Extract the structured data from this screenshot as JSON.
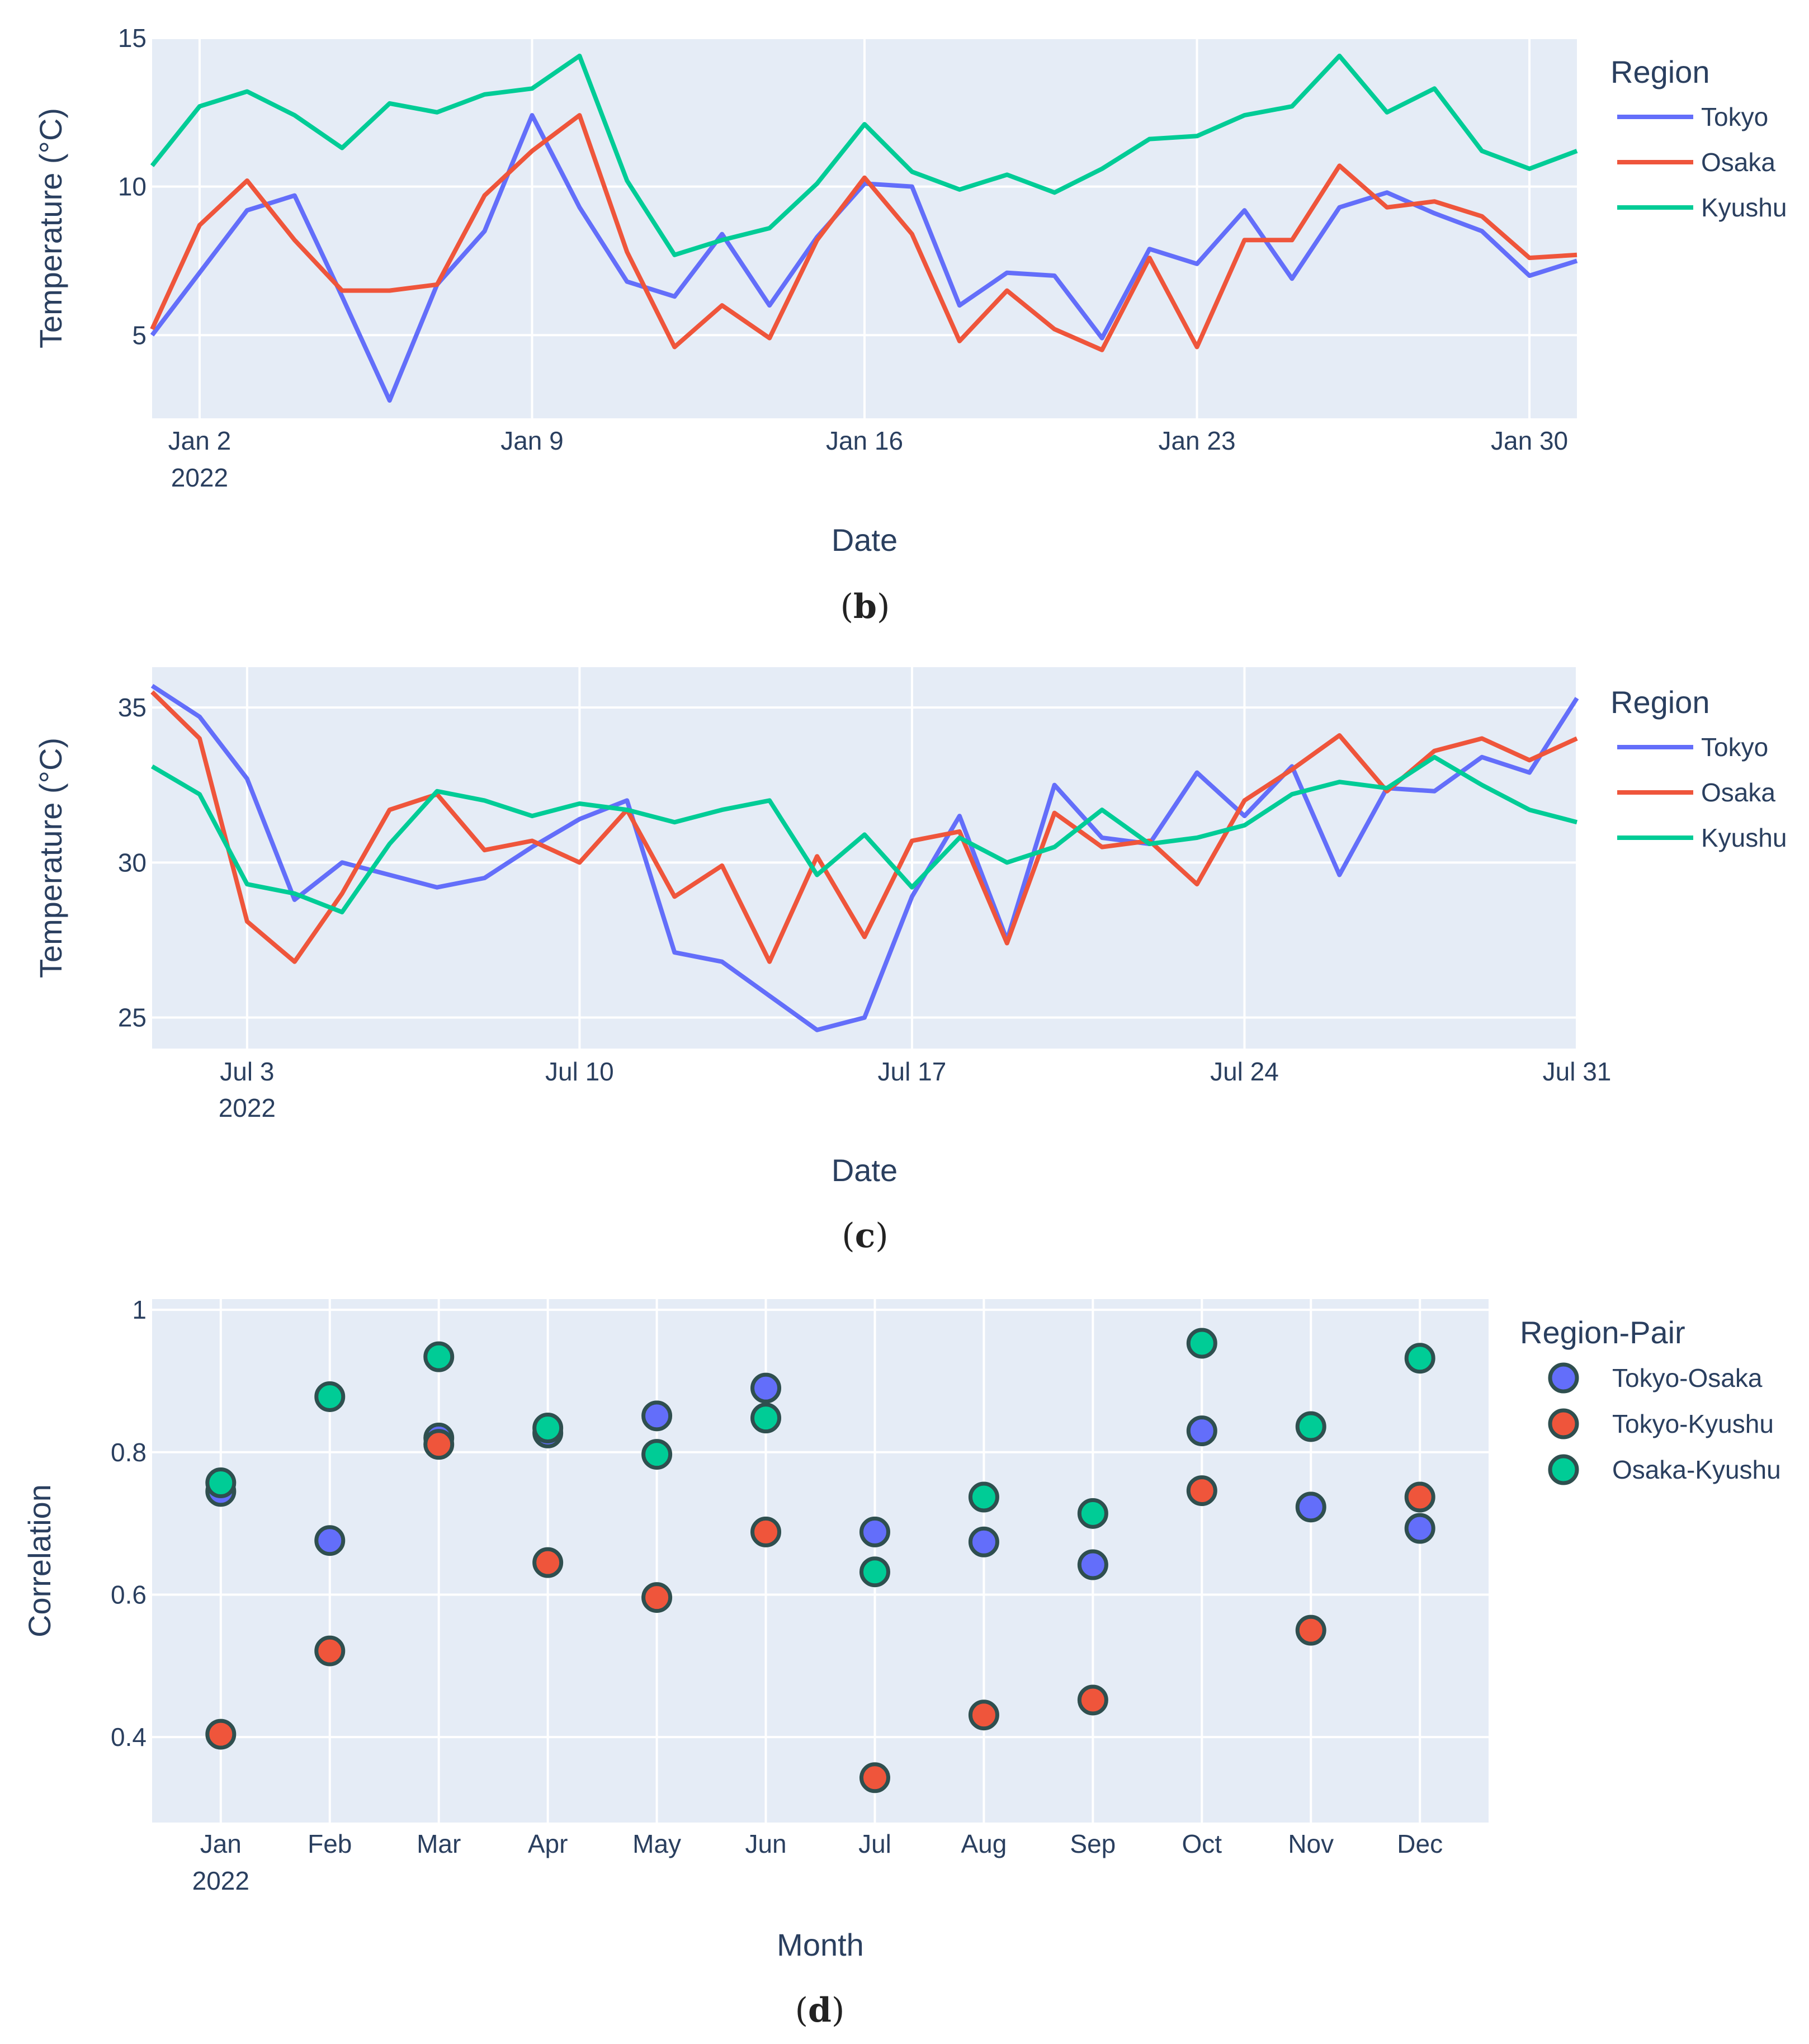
{
  "colors": {
    "plot_bg": "#E5ECF6",
    "grid": "#FFFFFF",
    "text": "#2a3f5f",
    "tokyo": "#636EFA",
    "osaka": "#EF553B",
    "kyushu": "#00CC96",
    "marker_edge": "#2F4F4F"
  },
  "chart_data": [
    {
      "type": "line",
      "panel_label": "b",
      "xlabel": "Date",
      "ylabel": "Temperature (°C)",
      "legend_title": "Region",
      "x": [
        "2022-01-01",
        "2022-01-02",
        "2022-01-03",
        "2022-01-04",
        "2022-01-05",
        "2022-01-06",
        "2022-01-07",
        "2022-01-08",
        "2022-01-09",
        "2022-01-10",
        "2022-01-11",
        "2022-01-12",
        "2022-01-13",
        "2022-01-14",
        "2022-01-15",
        "2022-01-16",
        "2022-01-17",
        "2022-01-18",
        "2022-01-19",
        "2022-01-20",
        "2022-01-21",
        "2022-01-22",
        "2022-01-23",
        "2022-01-24",
        "2022-01-25",
        "2022-01-26",
        "2022-01-27",
        "2022-01-28",
        "2022-01-29",
        "2022-01-30",
        "2022-01-31"
      ],
      "x_range": [
        1,
        31
      ],
      "ylim": [
        2.2,
        15
      ],
      "y_ticks": [
        5,
        10,
        15
      ],
      "x_ticks": [
        {
          "day": 2,
          "label": "Jan 2",
          "sub": "2022"
        },
        {
          "day": 9,
          "label": "Jan 9",
          "sub": ""
        },
        {
          "day": 16,
          "label": "Jan 16",
          "sub": ""
        },
        {
          "day": 23,
          "label": "Jan 23",
          "sub": ""
        },
        {
          "day": 30,
          "label": "Jan 30",
          "sub": ""
        }
      ],
      "series": [
        {
          "name": "Tokyo",
          "color_key": "tokyo",
          "values": [
            5.0,
            7.1,
            9.2,
            9.7,
            6.3,
            2.8,
            6.7,
            8.5,
            12.4,
            9.3,
            6.8,
            6.3,
            8.4,
            6.0,
            8.3,
            10.1,
            10.0,
            6.0,
            7.1,
            7.0,
            4.9,
            7.9,
            7.4,
            9.2,
            6.9,
            9.3,
            9.8,
            9.1,
            8.5,
            7.0,
            7.5
          ]
        },
        {
          "name": "Osaka",
          "color_key": "osaka",
          "values": [
            5.2,
            8.7,
            10.2,
            8.2,
            6.5,
            6.5,
            6.7,
            9.7,
            11.2,
            12.4,
            7.8,
            4.6,
            6.0,
            4.9,
            8.2,
            10.3,
            8.4,
            4.8,
            6.5,
            5.2,
            4.5,
            7.6,
            4.6,
            8.2,
            8.2,
            10.7,
            9.3,
            9.5,
            9.0,
            7.6,
            7.7
          ]
        },
        {
          "name": "Kyushu",
          "color_key": "kyushu",
          "values": [
            10.7,
            12.7,
            13.2,
            12.4,
            11.3,
            12.8,
            12.5,
            13.1,
            13.3,
            14.4,
            10.2,
            7.7,
            8.2,
            8.6,
            10.1,
            12.1,
            10.5,
            9.9,
            10.4,
            9.8,
            10.6,
            11.6,
            11.7,
            12.4,
            12.7,
            14.4,
            12.5,
            13.3,
            11.2,
            10.6,
            11.2
          ]
        }
      ]
    },
    {
      "type": "line",
      "panel_label": "c",
      "xlabel": "Date",
      "ylabel": "Temperature (°C)",
      "legend_title": "Region",
      "x": [
        "2022-07-01",
        "2022-07-02",
        "2022-07-03",
        "2022-07-04",
        "2022-07-05",
        "2022-07-06",
        "2022-07-07",
        "2022-07-08",
        "2022-07-09",
        "2022-07-10",
        "2022-07-11",
        "2022-07-12",
        "2022-07-13",
        "2022-07-14",
        "2022-07-15",
        "2022-07-16",
        "2022-07-17",
        "2022-07-18",
        "2022-07-19",
        "2022-07-20",
        "2022-07-21",
        "2022-07-22",
        "2022-07-23",
        "2022-07-24",
        "2022-07-25",
        "2022-07-26",
        "2022-07-27",
        "2022-07-28",
        "2022-07-29",
        "2022-07-30",
        "2022-07-31"
      ],
      "x_range": [
        1,
        31
      ],
      "ylim": [
        24,
        36.3
      ],
      "y_ticks": [
        25,
        30,
        35
      ],
      "x_ticks": [
        {
          "day": 3,
          "label": "Jul 3",
          "sub": "2022"
        },
        {
          "day": 10,
          "label": "Jul 10",
          "sub": ""
        },
        {
          "day": 17,
          "label": "Jul 17",
          "sub": ""
        },
        {
          "day": 24,
          "label": "Jul 24",
          "sub": ""
        },
        {
          "day": 31,
          "label": "Jul 31",
          "sub": ""
        }
      ],
      "series": [
        {
          "name": "Tokyo",
          "color_key": "tokyo",
          "values": [
            35.7,
            34.7,
            32.7,
            28.8,
            30.0,
            29.6,
            29.2,
            29.5,
            30.5,
            31.4,
            32.0,
            27.1,
            26.8,
            25.7,
            24.6,
            25.0,
            28.9,
            31.5,
            27.5,
            32.5,
            30.8,
            30.6,
            32.9,
            31.5,
            33.1,
            29.6,
            32.4,
            32.3,
            33.4,
            32.9,
            35.3
          ]
        },
        {
          "name": "Osaka",
          "color_key": "osaka",
          "values": [
            35.5,
            34.0,
            28.1,
            26.8,
            29.0,
            31.7,
            32.2,
            30.4,
            30.7,
            30.0,
            31.7,
            28.9,
            29.9,
            26.8,
            30.2,
            27.6,
            30.7,
            31.0,
            27.4,
            31.6,
            30.5,
            30.7,
            29.3,
            32.0,
            33.0,
            34.1,
            32.3,
            33.6,
            34.0,
            33.3,
            34.0
          ]
        },
        {
          "name": "Kyushu",
          "color_key": "kyushu",
          "values": [
            33.1,
            32.2,
            29.3,
            29.0,
            28.4,
            30.6,
            32.3,
            32.0,
            31.5,
            31.9,
            31.7,
            31.3,
            31.7,
            32.0,
            29.6,
            30.9,
            29.2,
            30.8,
            30.0,
            30.5,
            31.7,
            30.6,
            30.8,
            31.2,
            32.2,
            32.6,
            32.4,
            33.4,
            32.5,
            31.7,
            31.3
          ]
        }
      ]
    },
    {
      "type": "scatter",
      "panel_label": "d",
      "xlabel": "Month",
      "ylabel": "Correlation",
      "legend_title": "Region-Pair",
      "categories": [
        "Jan",
        "Feb",
        "Mar",
        "Apr",
        "May",
        "Jun",
        "Jul",
        "Aug",
        "Sep",
        "Oct",
        "Nov",
        "Dec"
      ],
      "category_sub": [
        "2022",
        "",
        "",
        "",
        "",
        "",
        "",
        "",
        "",
        "",
        "",
        ""
      ],
      "ylim": [
        0.28,
        1.015
      ],
      "y_ticks": [
        0.4,
        0.6,
        0.8,
        1
      ],
      "y_tick_labels": [
        "0.4",
        "0.6",
        "0.8",
        "1"
      ],
      "series": [
        {
          "name": "Tokyo-Osaka",
          "color_key": "tokyo",
          "values": [
            0.745,
            0.676,
            0.82,
            0.827,
            0.851,
            0.89,
            0.688,
            0.674,
            0.642,
            0.83,
            0.723,
            0.693
          ]
        },
        {
          "name": "Tokyo-Kyushu",
          "color_key": "osaka",
          "values": [
            0.404,
            0.521,
            0.811,
            0.645,
            0.596,
            0.688,
            0.343,
            0.431,
            0.452,
            0.746,
            0.55,
            0.737
          ]
        },
        {
          "name": "Osaka-Kyushu",
          "color_key": "kyushu",
          "values": [
            0.757,
            0.878,
            0.934,
            0.834,
            0.797,
            0.848,
            0.632,
            0.737,
            0.714,
            0.953,
            0.836,
            0.932
          ]
        }
      ]
    }
  ]
}
